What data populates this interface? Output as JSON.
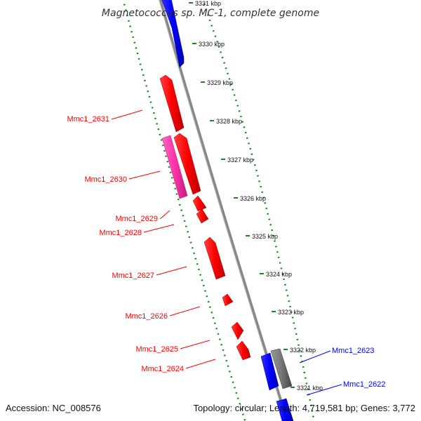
{
  "title": "Magnetococcus sp. MC-1, complete genome",
  "footer": {
    "accession": "Accession: NC_008576",
    "summary": "Topology: circular; Length: 4,719,581 bp; Genes: 3,772"
  },
  "colors": {
    "forward": "#0000ff",
    "reverse": "#ff0000",
    "rna": "#ff33aa",
    "other": "#777777",
    "backbone": "#888888",
    "ticks": "#1a8a1a"
  },
  "scale": {
    "ticks": [
      {
        "label": "3321 kbp"
      },
      {
        "label": "3322 kbp"
      },
      {
        "label": "3323 kbp"
      },
      {
        "label": "3324 kbp"
      },
      {
        "label": "3325 kbp"
      },
      {
        "label": "3326 kbp"
      },
      {
        "label": "3327 kbp"
      },
      {
        "label": "3328 kbp"
      },
      {
        "label": "3329 kbp"
      },
      {
        "label": "3330 kbp"
      },
      {
        "label": "3331 kbp"
      }
    ]
  },
  "genes": [
    {
      "name": "Mmc1_2622",
      "category": "forward"
    },
    {
      "name": "Mmc1_2623",
      "category": "other"
    },
    {
      "name": "Mmc1_2624",
      "category": "reverse"
    },
    {
      "name": "Mmc1_2625",
      "category": "reverse"
    },
    {
      "name": "Mmc1_2626",
      "category": "reverse"
    },
    {
      "name": "Mmc1_2627",
      "category": "reverse"
    },
    {
      "name": "Mmc1_2628",
      "category": "reverse"
    },
    {
      "name": "Mmc1_2629",
      "category": "reverse"
    },
    {
      "name": "Mmc1_2630",
      "category": "rna"
    },
    {
      "name": "Mmc1_2631",
      "category": "reverse"
    }
  ]
}
